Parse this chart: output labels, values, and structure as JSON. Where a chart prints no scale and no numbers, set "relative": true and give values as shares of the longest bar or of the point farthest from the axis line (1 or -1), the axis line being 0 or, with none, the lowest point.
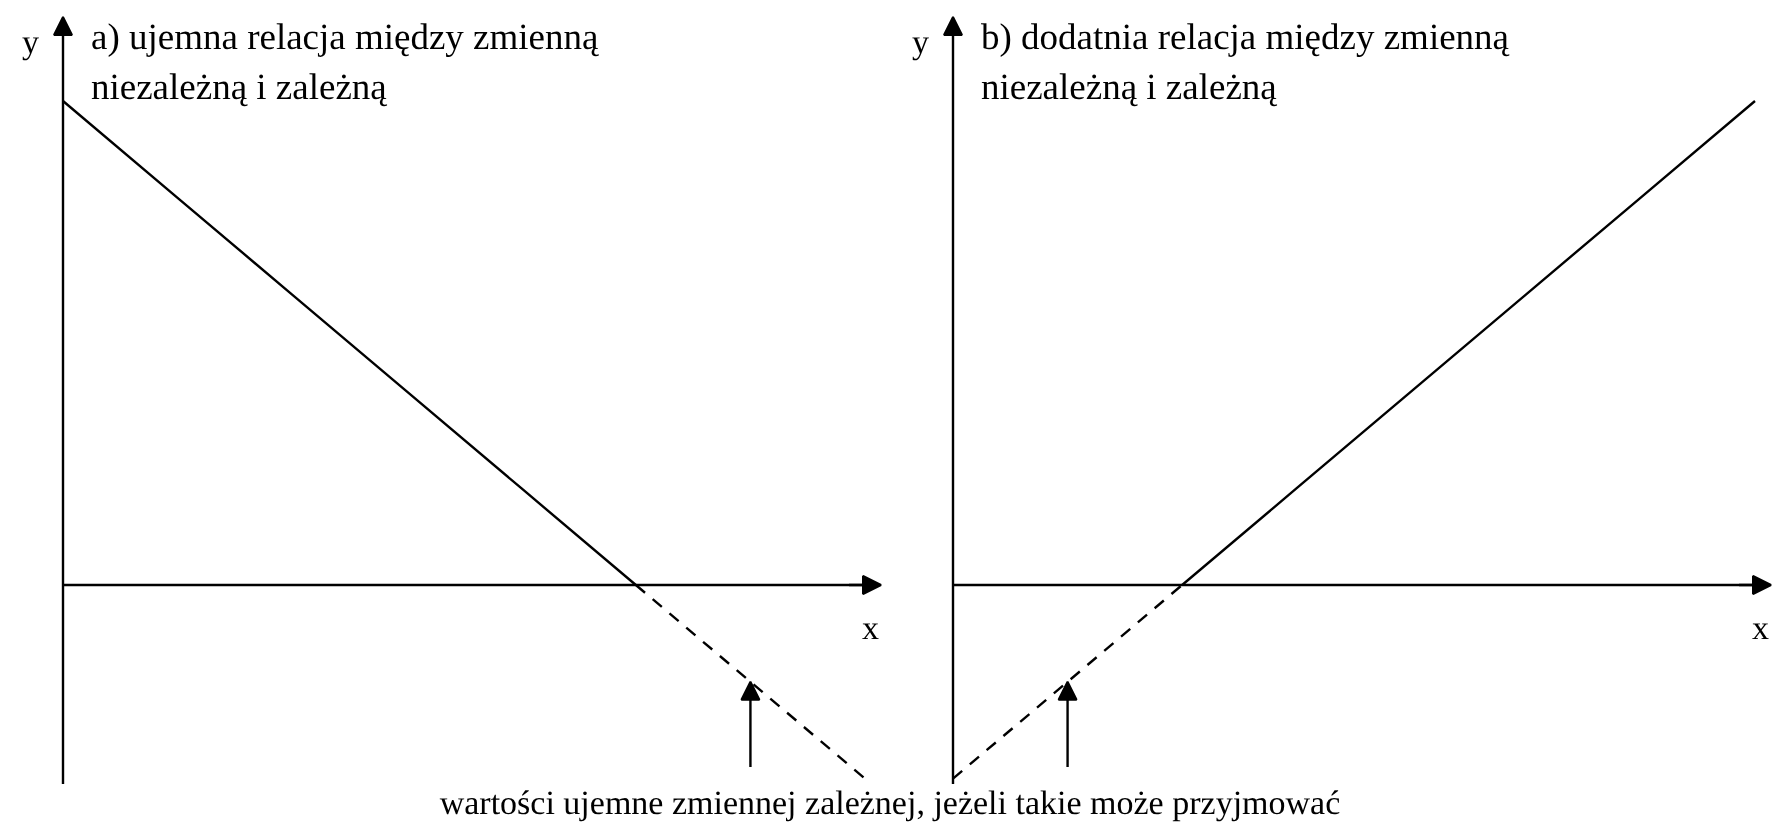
{
  "chart_data": [
    {
      "type": "line",
      "title": "a) ujemna relacja między zmienną\nniezależną i zależną",
      "xlabel": "x",
      "ylabel": "y",
      "relative": true,
      "categories": [
        null,
        null,
        null,
        null,
        null,
        null,
        null,
        null
      ],
      "series": [
        {
          "color": "#000000",
          "line_style": "solid",
          "values": [
            1,
            0.8,
            0.6,
            0.4,
            0.2,
            0,
            null,
            null
          ]
        },
        {
          "color": "#000000",
          "line_style": "dashed",
          "values": [
            null,
            null,
            null,
            null,
            null,
            0,
            -0.2,
            -0.4
          ]
        }
      ],
      "annotations": [
        "wartości ujemne zmiennej zależnej, jeżeli takie może przyjmować"
      ]
    },
    {
      "type": "line",
      "title": "b) dodatnia relacja między zmienną\nniezależną i zależną",
      "xlabel": "x",
      "ylabel": "y",
      "relative": true,
      "categories": [
        null,
        null,
        null,
        null,
        null,
        null,
        null,
        null
      ],
      "series": [
        {
          "color": "#000000",
          "line_style": "dashed",
          "values": [
            -0.4,
            -0.2,
            0,
            null,
            null,
            null,
            null,
            null
          ]
        },
        {
          "color": "#000000",
          "line_style": "solid",
          "values": [
            null,
            null,
            0,
            0.2,
            0.4,
            0.6,
            0.8,
            1
          ]
        }
      ]
    }
  ]
}
